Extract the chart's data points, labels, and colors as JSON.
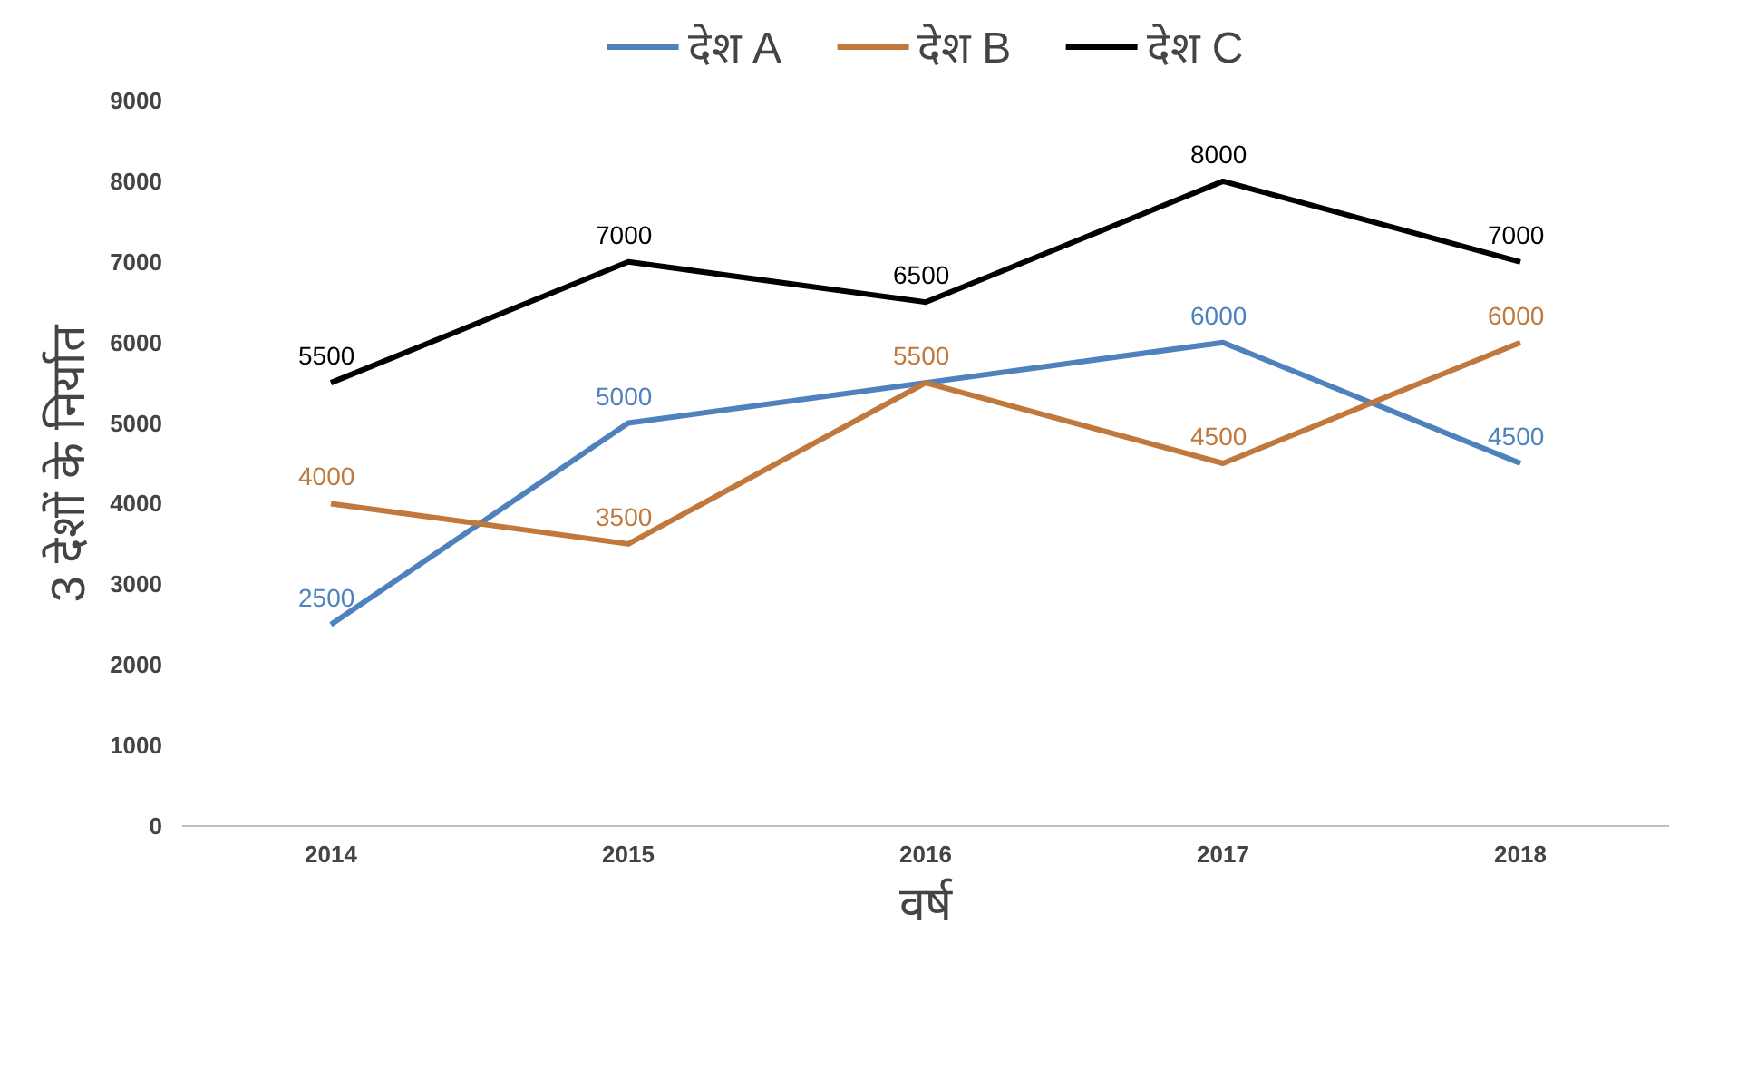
{
  "chart_data": {
    "type": "line",
    "xlabel": "वर्ष",
    "ylabel": "3 देशों के निर्यात",
    "categories": [
      "2014",
      "2015",
      "2016",
      "2017",
      "2018"
    ],
    "ylim": [
      0,
      9000
    ],
    "yticks": [
      0,
      1000,
      2000,
      3000,
      4000,
      5000,
      6000,
      7000,
      8000,
      9000
    ],
    "grid": false,
    "legend": "top",
    "marker": "none",
    "line_style": "solid",
    "series": [
      {
        "name": "देश A",
        "color": "#4f81bd",
        "values": [
          2500,
          5000,
          5500,
          6000,
          4500
        ],
        "value_labels": [
          "2500",
          "5000",
          null,
          "6000",
          "4500"
        ]
      },
      {
        "name": "देश B",
        "color": "#c0783c",
        "values": [
          4000,
          3500,
          5500,
          4500,
          6000
        ],
        "value_labels": [
          "4000",
          "3500",
          "5500",
          "4500",
          "6000"
        ]
      },
      {
        "name": "देश C",
        "color": "#000000",
        "values": [
          5500,
          7000,
          6500,
          8000,
          7000
        ],
        "value_labels": [
          "5500",
          "7000",
          "6500",
          "8000",
          "7000"
        ]
      }
    ]
  }
}
